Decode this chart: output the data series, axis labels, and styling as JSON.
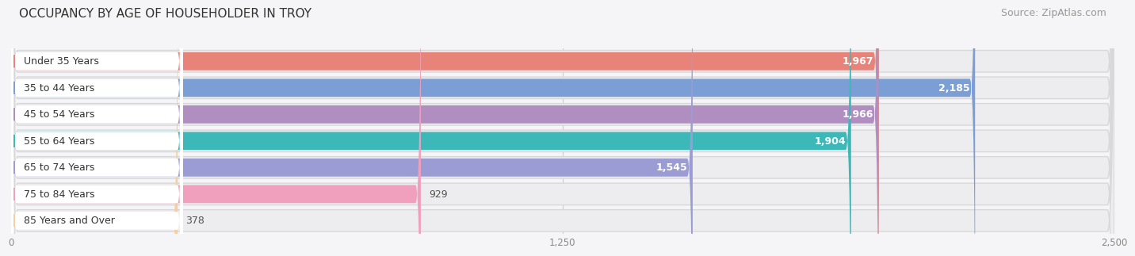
{
  "title": "OCCUPANCY BY AGE OF HOUSEHOLDER IN TROY",
  "source": "Source: ZipAtlas.com",
  "categories": [
    "Under 35 Years",
    "35 to 44 Years",
    "45 to 54 Years",
    "55 to 64 Years",
    "65 to 74 Years",
    "75 to 84 Years",
    "85 Years and Over"
  ],
  "values": [
    1967,
    2185,
    1966,
    1904,
    1545,
    929,
    378
  ],
  "bar_colors": [
    "#e8837a",
    "#7b9fd4",
    "#b08fc0",
    "#3db8b8",
    "#9b9cd4",
    "#f0a0bc",
    "#f5cfa0"
  ],
  "bar_bg_colors": [
    "#ededef",
    "#ededef",
    "#ededef",
    "#ededef",
    "#ededef",
    "#ededef",
    "#ededef"
  ],
  "value_label_colors": [
    "white",
    "white",
    "white",
    "white",
    "white",
    "black",
    "black"
  ],
  "xlim": [
    0,
    2500
  ],
  "xticks": [
    0,
    1250,
    2500
  ],
  "xtick_labels": [
    "0",
    "1,250",
    "2,500"
  ],
  "background_color": "#f5f5f7",
  "title_fontsize": 11,
  "source_fontsize": 9,
  "label_fontsize": 9,
  "value_fontsize": 9
}
